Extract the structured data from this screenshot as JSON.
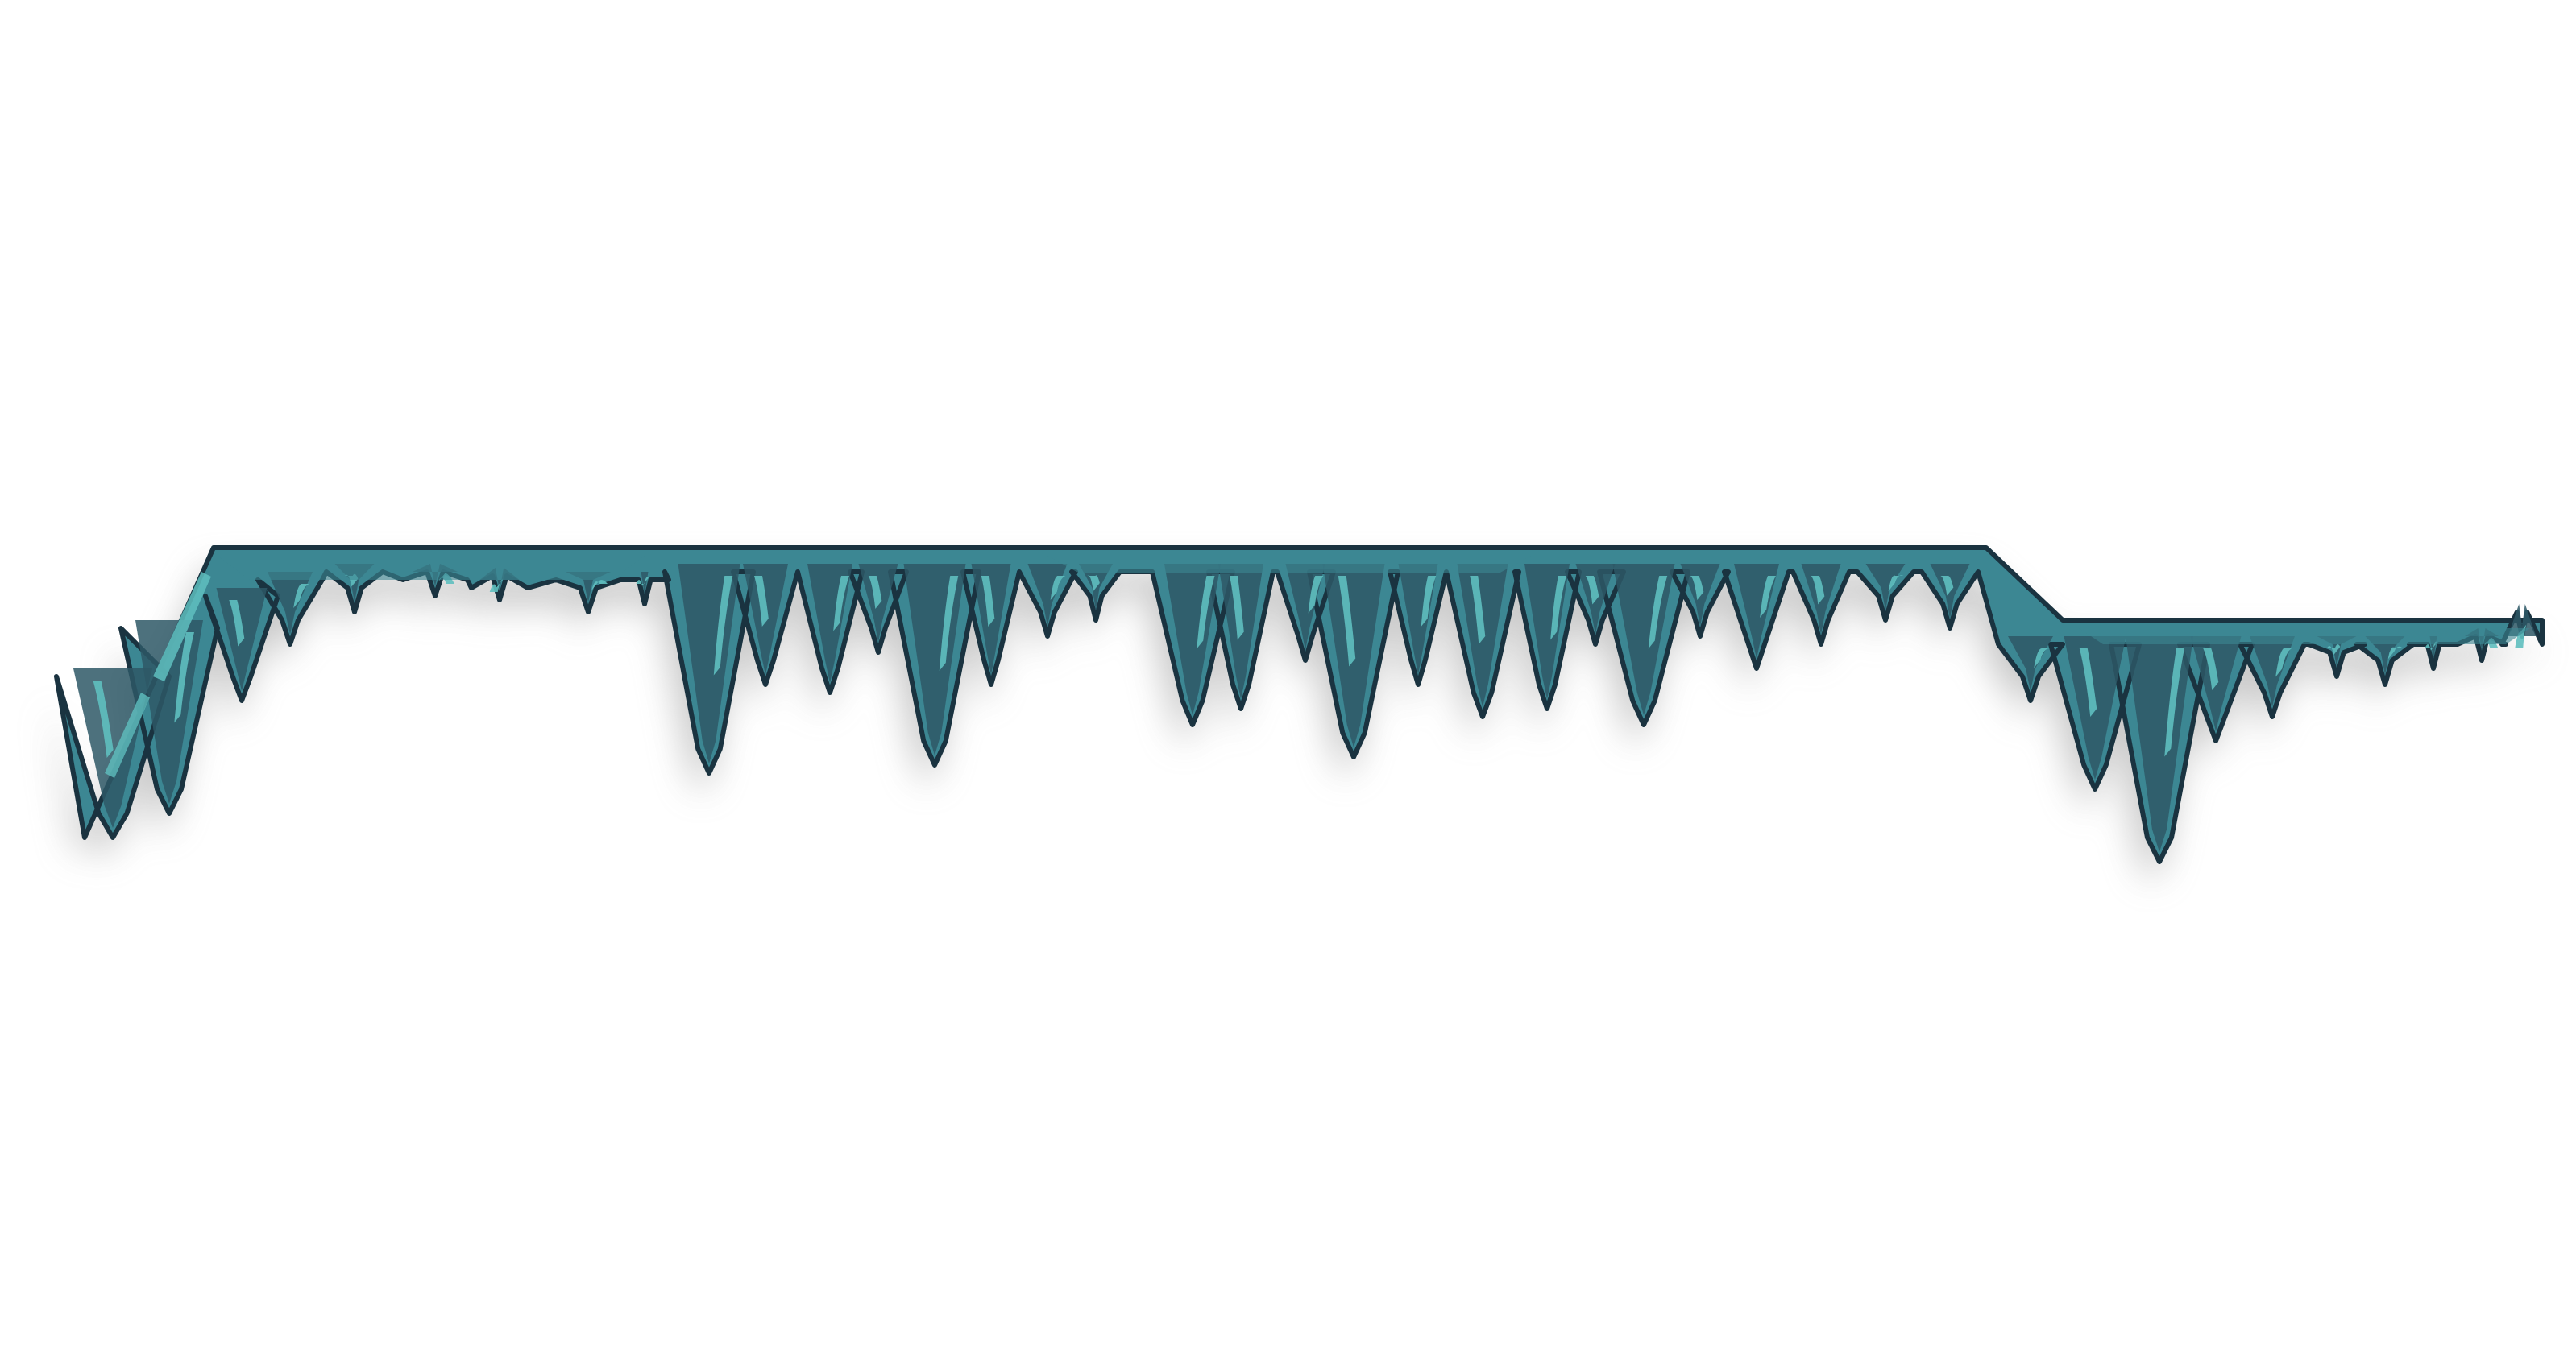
{
  "scene": {
    "description_free": true,
    "colors": {
      "background": "#ffffff",
      "rock_base": "#3c8793",
      "rock_dark": "#2e5866",
      "rock_highlight": "#5fbfbf",
      "outline": "#1a3340",
      "shadow": "#9a9a9a"
    },
    "asset": {
      "name": "ice-cave-ceiling-platform",
      "segments": [
        "left-slope",
        "upper-flat",
        "right-step-down",
        "lower-flat"
      ]
    }
  }
}
